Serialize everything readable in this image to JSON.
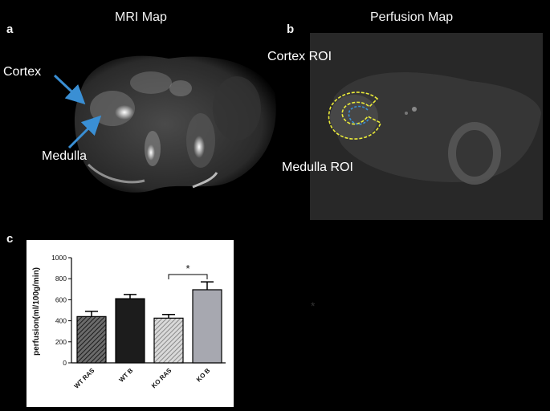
{
  "panels": {
    "a": {
      "letter": "a",
      "title": "MRI Map",
      "labels": {
        "cortex": "Cortex",
        "medulla": "Medulla"
      }
    },
    "b": {
      "letter": "b",
      "title": "Perfusion Map",
      "labels": {
        "cortex_roi": "Cortex ROI",
        "medulla_roi": "Medulla ROI"
      }
    },
    "c": {
      "letter": "c"
    }
  },
  "colors": {
    "arrow": "#3a8fd4",
    "roi_outline": "#ecec3a"
  },
  "chart_data": {
    "type": "bar",
    "categories": [
      "WT RAS",
      "WT B",
      "KO RAS",
      "KO B"
    ],
    "values": [
      440,
      610,
      425,
      695
    ],
    "errors": [
      50,
      40,
      35,
      75
    ],
    "ylabel": "perfusion(ml/100g/min)",
    "xlabel": "",
    "ylim": [
      0,
      1000
    ],
    "yticks": [
      0,
      200,
      400,
      600,
      800,
      1000
    ],
    "bar_colors": [
      "#5a5a5a",
      "#1c1c1c",
      "#9a9a9a",
      "#a7a8b0"
    ],
    "bar_patterns": [
      "hatch-dark",
      "solid",
      "hatch-light",
      "solid"
    ],
    "significance": {
      "between": [
        "KO RAS",
        "KO B"
      ],
      "label": "*"
    },
    "grid": false,
    "legend": "none"
  },
  "stray_marker": "*"
}
